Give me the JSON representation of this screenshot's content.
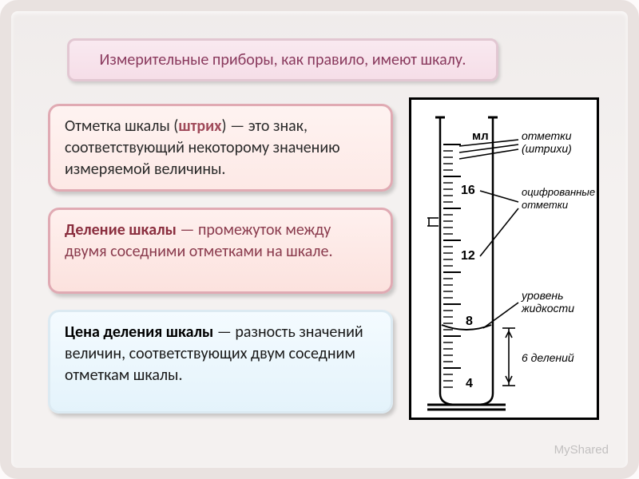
{
  "title": "Измерительные приборы, как правило, имеют шкалу.",
  "box1": {
    "pre": "Отметка шкалы (",
    "bold": "штрих",
    "post": ") — это знак, соответствующий некоторому значению измеряемой величины."
  },
  "box2": {
    "bold": "Деление шкалы",
    "post": " — промежуток между двумя соседними отметками на шкале."
  },
  "box3": {
    "bold": "Цена деления шкалы",
    "post": " — разность значений величин, соответствующих двум соседним отметкам шкалы."
  },
  "diagram": {
    "unit": "мл",
    "labels": {
      "marks": "отметки (штрихи)",
      "numbered": "оцифрованные отметки",
      "liquid": "уровень жидкости",
      "divisions": "6 делений"
    },
    "numbers": [
      "16",
      "12",
      "8",
      "4"
    ]
  },
  "watermark": "MyShared",
  "colors": {
    "frame": "#e9e2e0",
    "title_border": "#e2c7d2",
    "title_bg_top": "#f9e9f0",
    "title_bg_bot": "#f6dee8",
    "title_text": "#8a3a5e",
    "pink_border": "#e0aab3",
    "blue_border": "#dceaf2",
    "diagram_stroke": "#000000"
  }
}
